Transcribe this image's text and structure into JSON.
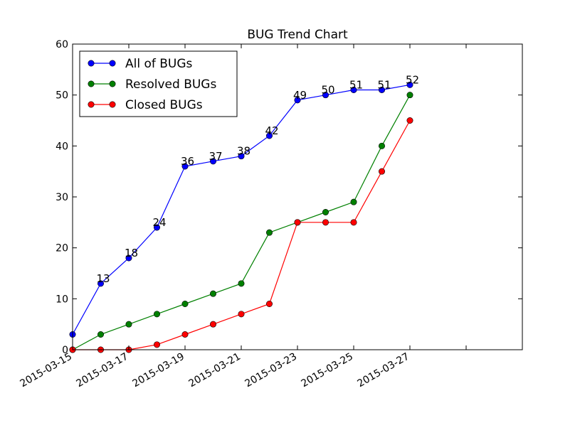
{
  "chart_data": {
    "type": "line",
    "title": "BUG Trend Chart",
    "xlabel": "",
    "ylabel": "",
    "x": [
      "2015-03-15",
      "2015-03-16",
      "2015-03-17",
      "2015-03-18",
      "2015-03-19",
      "2015-03-20",
      "2015-03-21",
      "2015-03-22",
      "2015-03-23",
      "2015-03-24",
      "2015-03-25",
      "2015-03-26",
      "2015-03-27"
    ],
    "x_ticks": [
      "2015-03-15",
      "2015-03-17",
      "2015-03-19",
      "2015-03-21",
      "2015-03-23",
      "2015-03-25",
      "2015-03-27"
    ],
    "xlim": [
      "2015-03-15",
      "2015-03-31"
    ],
    "ylim": [
      0,
      60
    ],
    "y_ticks": [
      0,
      10,
      20,
      30,
      40,
      50,
      60
    ],
    "grid": false,
    "legend_position": "top-left",
    "series": [
      {
        "name": "All of BUGs",
        "color": "#0000ff",
        "values": [
          3,
          13,
          18,
          24,
          36,
          37,
          38,
          42,
          49,
          50,
          51,
          51,
          52
        ],
        "point_labels": [
          "",
          "13",
          "18",
          "24",
          "36",
          "37",
          "38",
          "42",
          "49",
          "50",
          "51",
          "51",
          "52"
        ]
      },
      {
        "name": "Resolved BUGs",
        "color": "#008000",
        "values": [
          0,
          3,
          5,
          7,
          9,
          11,
          13,
          23,
          25,
          27,
          29,
          40,
          50
        ]
      },
      {
        "name": "Closed BUGs",
        "color": "#ff0000",
        "values": [
          0,
          0,
          0,
          1,
          3,
          5,
          7,
          9,
          25,
          25,
          25,
          35,
          45
        ]
      }
    ]
  }
}
